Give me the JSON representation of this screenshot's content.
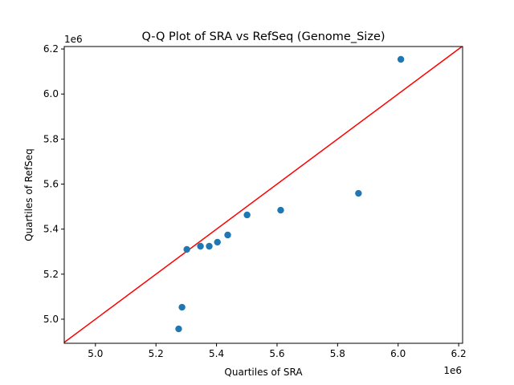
{
  "chart_data": {
    "type": "scatter",
    "title": "Q-Q Plot of SRA vs RefSeq (Genome_Size)",
    "xlabel": "Quartiles of SRA",
    "ylabel": "Quartiles of RefSeq",
    "x_offset_label": "1e6",
    "y_offset_label": "1e6",
    "xlim": [
      4.897,
      6.213
    ],
    "ylim": [
      4.893,
      6.211
    ],
    "xticks": [
      5.0,
      5.2,
      5.4,
      5.6,
      5.8,
      6.0,
      6.2
    ],
    "xtick_labels": [
      "5.0",
      "5.2",
      "5.4",
      "5.6",
      "5.8",
      "6.0",
      "6.2"
    ],
    "yticks": [
      5.0,
      5.2,
      5.4,
      5.6,
      5.8,
      6.0,
      6.2
    ],
    "ytick_labels": [
      "5.0",
      "5.2",
      "5.4",
      "5.6",
      "5.8",
      "6.0",
      "6.2"
    ],
    "grid": false,
    "points": {
      "x": [
        5.275,
        5.286,
        5.302,
        5.347,
        5.376,
        5.403,
        5.437,
        5.501,
        5.612,
        5.869,
        6.009
      ],
      "y": [
        4.957,
        5.053,
        5.31,
        5.324,
        5.324,
        5.342,
        5.374,
        5.463,
        5.484,
        5.559,
        6.154
      ]
    },
    "reference_line": "y = x",
    "colors": {
      "points": "#1f77b4",
      "line": "#ff0000"
    }
  }
}
